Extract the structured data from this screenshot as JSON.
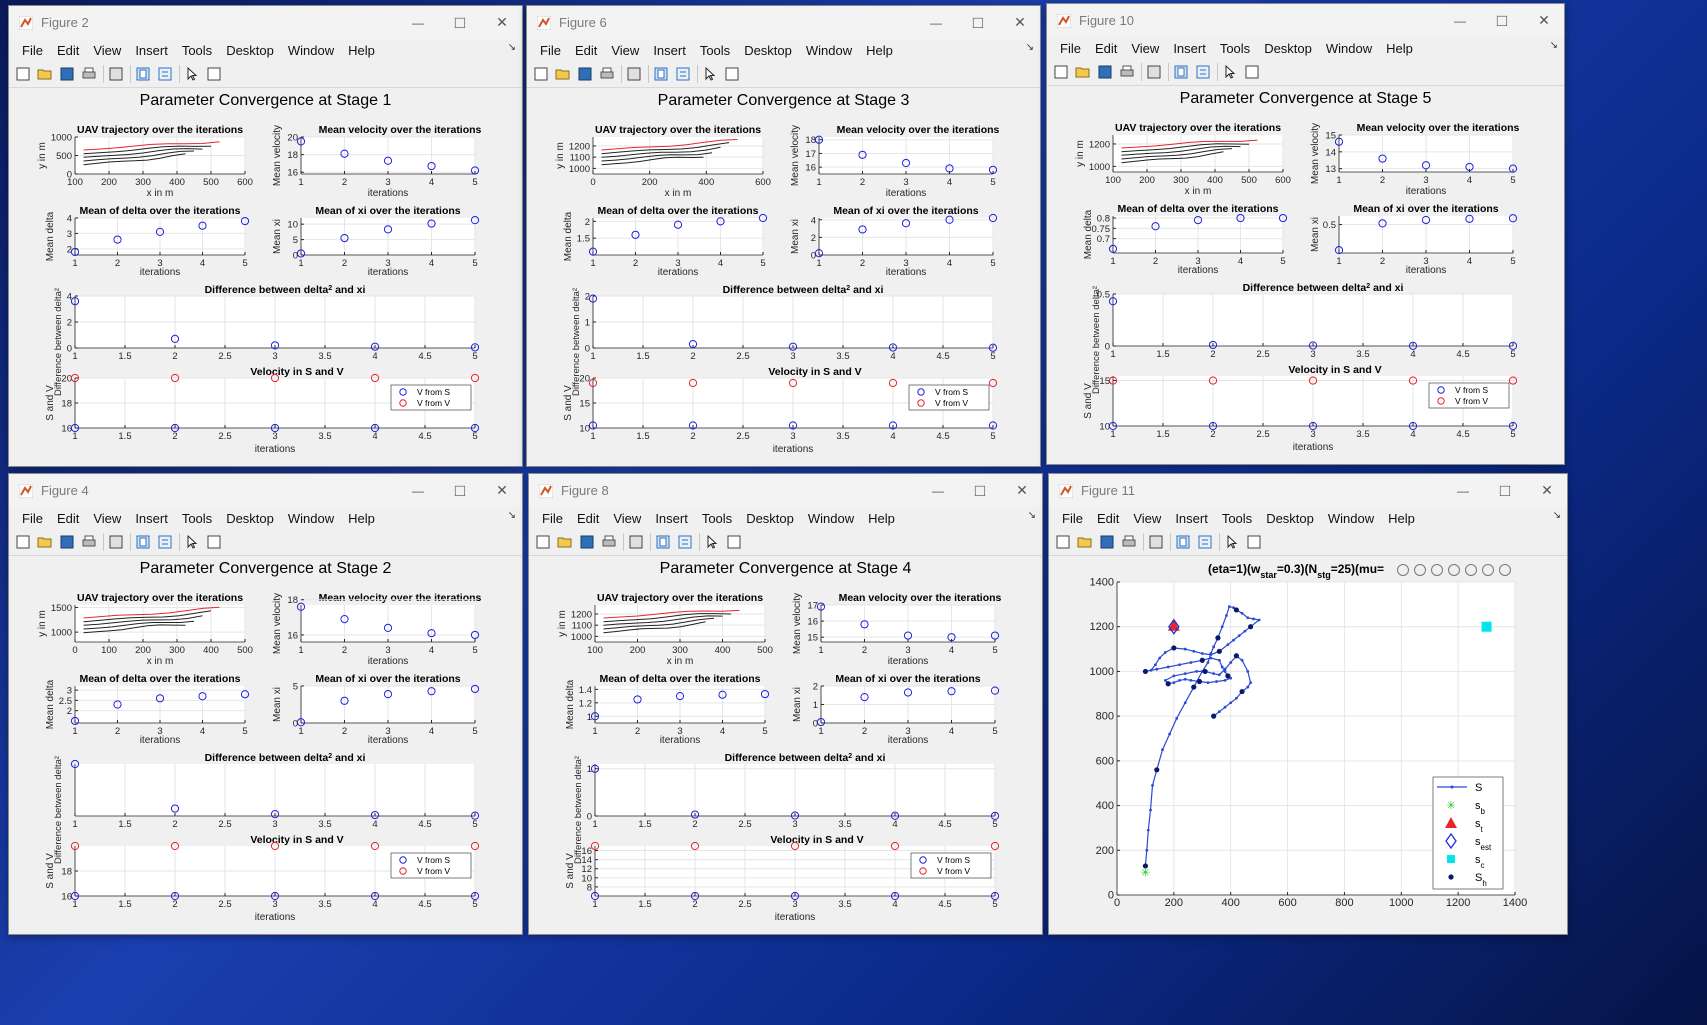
{
  "menu_items": [
    "File",
    "Edit",
    "View",
    "Insert",
    "Tools",
    "Desktop",
    "Window",
    "Help"
  ],
  "legend_s": "V from S",
  "legend_v": "V from V",
  "windows": [
    {
      "title": "Figure 2",
      "heading": "Parameter Convergence at Stage 1",
      "traj_ylim": [
        0,
        1000
      ],
      "traj_yticks": [
        "0",
        "500",
        "1000"
      ],
      "traj_xlim": [
        100,
        600
      ],
      "traj_xticks": [
        "100",
        "200",
        "300",
        "400",
        "500",
        "600"
      ],
      "mv": [
        19.5,
        18.1,
        17.3,
        16.7,
        16.2
      ],
      "mv_ylim": [
        15.8,
        20
      ],
      "mv_yticks": [
        "16",
        "18",
        "20"
      ],
      "md": [
        1.8,
        2.6,
        3.1,
        3.5,
        3.8
      ],
      "md_ylim": [
        1.6,
        4
      ],
      "md_yticks": [
        "2",
        "3",
        "4"
      ],
      "mx": [
        0.5,
        5.5,
        8.3,
        10.2,
        11.3
      ],
      "mx_ylim": [
        0,
        12
      ],
      "mx_yticks": [
        "0",
        "5",
        "10"
      ],
      "diff": [
        3.6,
        0.7,
        0.2,
        0.1,
        0.05
      ],
      "diff_ylim": [
        0,
        4
      ],
      "diff_yticks": [
        "0",
        "2",
        "4"
      ],
      "vs": [
        16,
        16,
        16,
        16,
        16
      ],
      "vv": [
        20,
        20,
        20,
        20,
        20
      ],
      "v_ylim": [
        16,
        20
      ],
      "v_yticks": [
        "16",
        "18",
        "20"
      ]
    },
    {
      "title": "Figure 6",
      "heading": "Parameter Convergence at Stage 3",
      "traj_ylim": [
        950,
        1280
      ],
      "traj_yticks": [
        "1000",
        "1100",
        "1200"
      ],
      "traj_xlim": [
        0,
        600
      ],
      "traj_xticks": [
        "0",
        "200",
        "400",
        "600"
      ],
      "mv": [
        18,
        16.9,
        16.3,
        15.9,
        15.8
      ],
      "mv_ylim": [
        15.5,
        18.2
      ],
      "mv_yticks": [
        "16",
        "17",
        "18"
      ],
      "md": [
        1.1,
        1.6,
        1.9,
        2.0,
        2.1
      ],
      "md_ylim": [
        1,
        2.1
      ],
      "md_yticks": [
        "1.5",
        "2"
      ],
      "mx": [
        0.2,
        2.9,
        3.6,
        4.0,
        4.2
      ],
      "mx_ylim": [
        0,
        4.2
      ],
      "mx_yticks": [
        "0",
        "2",
        "4"
      ],
      "diff": [
        1.9,
        0.15,
        0.05,
        0.02,
        0.01
      ],
      "diff_ylim": [
        0,
        2
      ],
      "diff_yticks": [
        "0",
        "1",
        "2"
      ],
      "vs": [
        10.5,
        10.5,
        10.5,
        10.5,
        10.5
      ],
      "vv": [
        19,
        19,
        19,
        19,
        19
      ],
      "v_ylim": [
        10,
        20
      ],
      "v_yticks": [
        "10",
        "15",
        "20"
      ]
    },
    {
      "title": "Figure 10",
      "heading": "Parameter Convergence at Stage 5",
      "traj_ylim": [
        950,
        1280
      ],
      "traj_yticks": [
        "1000",
        "1200"
      ],
      "traj_xlim": [
        100,
        600
      ],
      "traj_xticks": [
        "100",
        "200",
        "300",
        "400",
        "500",
        "600"
      ],
      "mv": [
        14.6,
        13.6,
        13.2,
        13.1,
        13.0
      ],
      "mv_ylim": [
        12.8,
        15
      ],
      "mv_yticks": [
        "13",
        "14",
        "15"
      ],
      "md": [
        0.65,
        0.76,
        0.79,
        0.8,
        0.8
      ],
      "md_ylim": [
        0.63,
        0.81
      ],
      "md_yticks": [
        "0.7",
        "0.75",
        "0.8"
      ],
      "mx": [
        0.05,
        0.52,
        0.58,
        0.6,
        0.61
      ],
      "mx_ylim": [
        0,
        0.65
      ],
      "mx_yticks": [
        "0.5"
      ],
      "diff": [
        0.43,
        0.01,
        0.005,
        0.002,
        0.001
      ],
      "diff_ylim": [
        0,
        0.5
      ],
      "diff_yticks": [
        "0",
        "0.5"
      ],
      "vs": [
        10,
        10,
        10,
        10,
        10
      ],
      "vv": [
        15,
        15,
        15,
        15,
        15
      ],
      "v_ylim": [
        10,
        15.5
      ],
      "v_yticks": [
        "10",
        "15"
      ]
    },
    {
      "title": "Figure 4",
      "heading": "Parameter Convergence at Stage 2",
      "traj_ylim": [
        800,
        1550
      ],
      "traj_yticks": [
        "1000",
        "1500"
      ],
      "traj_xlim": [
        0,
        500
      ],
      "traj_xticks": [
        "0",
        "100",
        "200",
        "300",
        "400",
        "500"
      ],
      "mv": [
        17.6,
        16.9,
        16.4,
        16.1,
        16.0
      ],
      "mv_ylim": [
        15.6,
        17.7
      ],
      "mv_yticks": [
        "16",
        "18"
      ],
      "md": [
        1.5,
        2.3,
        2.6,
        2.7,
        2.8
      ],
      "md_ylim": [
        1.4,
        3.2
      ],
      "md_yticks": [
        "2",
        "2.5",
        "3"
      ],
      "mx": [
        0.1,
        3.0,
        3.9,
        4.3,
        4.6
      ],
      "mx_ylim": [
        0,
        5
      ],
      "mx_yticks": [
        "0",
        "5"
      ],
      "diff": [
        2.8,
        0.4,
        0.1,
        0.05,
        0.02
      ],
      "diff_ylim": [
        0,
        2.8
      ],
      "diff_yticks": [],
      "vs": [
        16,
        16,
        16,
        16,
        16
      ],
      "vv": [
        20,
        20,
        20,
        20,
        20
      ],
      "v_ylim": [
        16,
        20
      ],
      "v_yticks": [
        "16",
        "18"
      ]
    },
    {
      "title": "Figure 8",
      "heading": "Parameter Convergence at Stage 4",
      "traj_ylim": [
        950,
        1280
      ],
      "traj_yticks": [
        "1000",
        "1100",
        "1200"
      ],
      "traj_xlim": [
        100,
        500
      ],
      "traj_xticks": [
        "100",
        "200",
        "300",
        "400",
        "500"
      ],
      "mv": [
        16.9,
        15.8,
        15.1,
        15.0,
        15.1
      ],
      "mv_ylim": [
        14.7,
        17
      ],
      "mv_yticks": [
        "15",
        "16",
        "17"
      ],
      "md": [
        1.0,
        1.25,
        1.3,
        1.32,
        1.33
      ],
      "md_ylim": [
        0.9,
        1.45
      ],
      "md_yticks": [
        "1",
        "1.2",
        "1.4"
      ],
      "mx": [
        0.05,
        1.4,
        1.65,
        1.72,
        1.75
      ],
      "mx_ylim": [
        0,
        2
      ],
      "mx_yticks": [
        "0",
        "1",
        "2"
      ],
      "diff": [
        1.0,
        0.03,
        0.01,
        0.005,
        0.002
      ],
      "diff_ylim": [
        0,
        1.1
      ],
      "diff_yticks": [
        "0",
        "1"
      ],
      "vs": [
        6,
        6,
        6,
        6,
        6
      ],
      "vv": [
        17,
        17,
        17,
        17,
        17
      ],
      "v_ylim": [
        6,
        17
      ],
      "v_yticks": [
        "8",
        "10",
        "12",
        "14",
        "16"
      ]
    }
  ],
  "labels": {
    "traj_title": "UAV trajectory over the iterations",
    "traj_xlabel": "x in m",
    "traj_ylabel": "y in m",
    "mv_title": "Mean velocity over the iterations",
    "mv_ylabel": "Mean velocity",
    "iter": "iterations",
    "md_title": "Mean of delta over the iterations",
    "md_ylabel": "Mean delta",
    "mx_title": "Mean of xi over the iterations",
    "mx_ylabel": "Mean xi",
    "diff_title": "Difference between delta",
    "diff_title_b": " and xi",
    "diff_ylabel": "Difference between delta",
    "overlap": "and xis",
    "v_title": "Velocity in S and V",
    "v_ylabel": "S and V"
  },
  "ticks_iter": [
    "1",
    "2",
    "3",
    "4",
    "5"
  ],
  "ticks_iter_fine": [
    "1",
    "1.5",
    "2",
    "2.5",
    "3",
    "3.5",
    "4",
    "4.5",
    "5"
  ],
  "figure11": {
    "title": "Figure 11",
    "plot_title": "(eta=1)(w",
    "plot_title_sub1": "star",
    "plot_title_mid": "=0.3)(N",
    "plot_title_sub2": "stg",
    "plot_title_end": "=25)(mu=",
    "xticks": [
      "0",
      "200",
      "400",
      "600",
      "800",
      "1000",
      "1200",
      "1400"
    ],
    "yticks": [
      "0",
      "200",
      "400",
      "600",
      "800",
      "1000",
      "1200",
      "1400"
    ],
    "legend": [
      {
        "main": "S",
        "sub": ""
      },
      {
        "main": "s",
        "sub": "b"
      },
      {
        "main": "s",
        "sub": "t"
      },
      {
        "main": "s",
        "sub": "est"
      },
      {
        "main": "s",
        "sub": "c"
      },
      {
        "main": "S",
        "sub": "h"
      }
    ],
    "s_b": [
      100,
      100
    ],
    "s_t": [
      200,
      1200
    ],
    "s_est": [
      200,
      1200
    ],
    "s_c": [
      1300,
      1200
    ],
    "path": [
      [
        100,
        130
      ],
      [
        105,
        200
      ],
      [
        110,
        290
      ],
      [
        118,
        380
      ],
      [
        125,
        490
      ],
      [
        140,
        560
      ],
      [
        160,
        650
      ],
      [
        185,
        720
      ],
      [
        210,
        790
      ],
      [
        240,
        860
      ],
      [
        270,
        930
      ],
      [
        300,
        1000
      ],
      [
        320,
        1040
      ],
      [
        330,
        1080
      ],
      [
        340,
        1110
      ],
      [
        355,
        1150
      ],
      [
        370,
        1200
      ],
      [
        385,
        1250
      ],
      [
        395,
        1290
      ],
      [
        410,
        1285
      ],
      [
        420,
        1275
      ],
      [
        440,
        1260
      ],
      [
        460,
        1240
      ],
      [
        480,
        1235
      ],
      [
        500,
        1230
      ],
      [
        470,
        1200
      ],
      [
        450,
        1180
      ],
      [
        430,
        1160
      ],
      [
        410,
        1140
      ],
      [
        390,
        1120
      ],
      [
        360,
        1090
      ],
      [
        330,
        1075
      ],
      [
        300,
        1080
      ],
      [
        270,
        1090
      ],
      [
        240,
        1100
      ],
      [
        200,
        1105
      ],
      [
        170,
        1085
      ],
      [
        150,
        1060
      ],
      [
        135,
        1030
      ],
      [
        120,
        1005
      ],
      [
        100,
        1000
      ],
      [
        140,
        1010
      ],
      [
        180,
        1020
      ],
      [
        220,
        1030
      ],
      [
        260,
        1040
      ],
      [
        300,
        1050
      ],
      [
        330,
        1060
      ],
      [
        360,
        1050
      ],
      [
        370,
        1020
      ],
      [
        380,
        1000
      ],
      [
        390,
        980
      ],
      [
        400,
        970
      ],
      [
        380,
        960
      ],
      [
        350,
        955
      ],
      [
        320,
        950
      ],
      [
        290,
        955
      ],
      [
        260,
        960
      ],
      [
        240,
        965
      ],
      [
        220,
        960
      ],
      [
        200,
        950
      ],
      [
        180,
        945
      ],
      [
        170,
        960
      ],
      [
        200,
        980
      ],
      [
        240,
        990
      ],
      [
        280,
        1000
      ],
      [
        310,
        1000
      ],
      [
        340,
        990
      ],
      [
        360,
        985
      ],
      [
        380,
        1010
      ],
      [
        400,
        1040
      ],
      [
        420,
        1070
      ],
      [
        440,
        1050
      ],
      [
        460,
        1000
      ],
      [
        470,
        950
      ],
      [
        460,
        930
      ],
      [
        440,
        910
      ],
      [
        420,
        880
      ],
      [
        400,
        860
      ],
      [
        380,
        840
      ],
      [
        360,
        820
      ],
      [
        340,
        800
      ]
    ]
  }
}
